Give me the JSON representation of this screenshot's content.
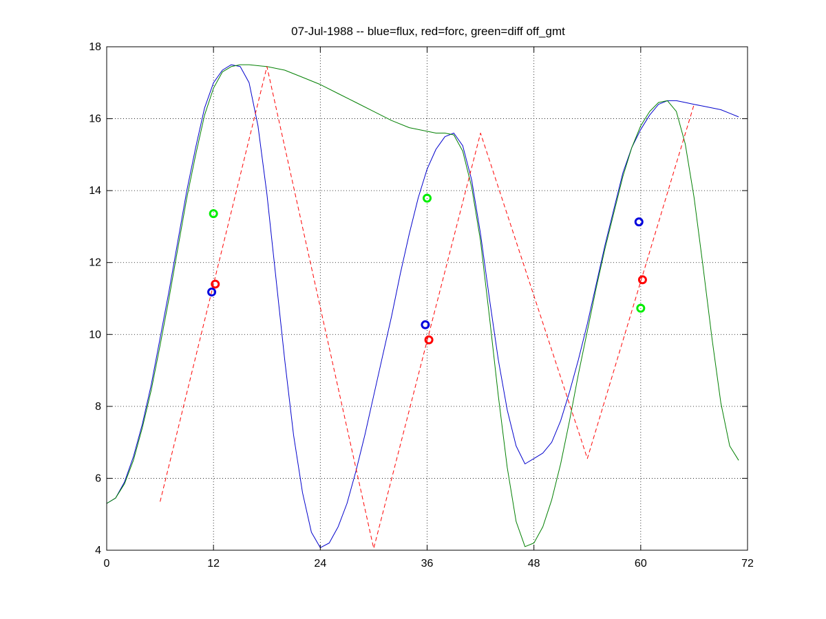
{
  "chart_data": {
    "type": "line",
    "title": "07-Jul-1988 -- blue=flux, red=forc, green=diff off_gmt",
    "xlabel": "",
    "ylabel": "",
    "xlim": [
      0,
      72
    ],
    "ylim": [
      4,
      18
    ],
    "xticks": [
      0,
      12,
      24,
      36,
      48,
      60,
      72
    ],
    "yticks": [
      4,
      6,
      8,
      10,
      12,
      14,
      16,
      18
    ],
    "grid": true,
    "grid_style": "dotted",
    "colors": {
      "flux": "#0000cc",
      "forc": "#ff0000",
      "diff": "#007f00",
      "diff_marker": "#00ee00",
      "forc_marker": "#ff0000",
      "flux_marker": "#0000dd"
    },
    "series": [
      {
        "key": "flux",
        "style": "solid",
        "points": [
          [
            0,
            5.3
          ],
          [
            1,
            5.45
          ],
          [
            2,
            5.9
          ],
          [
            3,
            6.6
          ],
          [
            4,
            7.5
          ],
          [
            5,
            8.6
          ],
          [
            6,
            9.9
          ],
          [
            7,
            11.2
          ],
          [
            8,
            12.6
          ],
          [
            9,
            14.0
          ],
          [
            10,
            15.2
          ],
          [
            11,
            16.3
          ],
          [
            12,
            17.0
          ],
          [
            13,
            17.35
          ],
          [
            14,
            17.5
          ],
          [
            15,
            17.45
          ],
          [
            16,
            17.0
          ],
          [
            17,
            15.8
          ],
          [
            18,
            13.9
          ],
          [
            19,
            11.6
          ],
          [
            20,
            9.3
          ],
          [
            21,
            7.2
          ],
          [
            22,
            5.6
          ],
          [
            23,
            4.5
          ],
          [
            24,
            4.07
          ],
          [
            25,
            4.2
          ],
          [
            26,
            4.65
          ],
          [
            27,
            5.3
          ],
          [
            28,
            6.2
          ],
          [
            29,
            7.2
          ],
          [
            30,
            8.3
          ],
          [
            31,
            9.4
          ],
          [
            32,
            10.5
          ],
          [
            33,
            11.7
          ],
          [
            34,
            12.8
          ],
          [
            35,
            13.8
          ],
          [
            36,
            14.6
          ],
          [
            37,
            15.15
          ],
          [
            38,
            15.5
          ],
          [
            39,
            15.6
          ],
          [
            40,
            15.25
          ],
          [
            41,
            14.3
          ],
          [
            42,
            12.8
          ],
          [
            43,
            11.0
          ],
          [
            44,
            9.3
          ],
          [
            45,
            7.9
          ],
          [
            46,
            6.9
          ],
          [
            47,
            6.4
          ],
          [
            48,
            6.55
          ],
          [
            49,
            6.7
          ],
          [
            50,
            7.0
          ],
          [
            51,
            7.6
          ],
          [
            52,
            8.4
          ],
          [
            53,
            9.3
          ],
          [
            54,
            10.3
          ],
          [
            55,
            11.4
          ],
          [
            56,
            12.5
          ],
          [
            57,
            13.5
          ],
          [
            58,
            14.5
          ],
          [
            59,
            15.2
          ],
          [
            60,
            15.7
          ],
          [
            61,
            16.1
          ],
          [
            62,
            16.4
          ],
          [
            63,
            16.5
          ],
          [
            64,
            16.5
          ],
          [
            65,
            16.45
          ],
          [
            66,
            16.4
          ],
          [
            67,
            16.35
          ],
          [
            68,
            16.3
          ],
          [
            69,
            16.25
          ],
          [
            70,
            16.15
          ],
          [
            71,
            16.05
          ]
        ]
      },
      {
        "key": "diff",
        "style": "solid",
        "points": [
          [
            0,
            5.3
          ],
          [
            1,
            5.45
          ],
          [
            2,
            5.85
          ],
          [
            3,
            6.5
          ],
          [
            4,
            7.4
          ],
          [
            5,
            8.45
          ],
          [
            6,
            9.7
          ],
          [
            7,
            11.0
          ],
          [
            8,
            12.4
          ],
          [
            9,
            13.8
          ],
          [
            10,
            15.0
          ],
          [
            11,
            16.1
          ],
          [
            12,
            16.85
          ],
          [
            13,
            17.3
          ],
          [
            14,
            17.45
          ],
          [
            15,
            17.5
          ],
          [
            16,
            17.5
          ],
          [
            18,
            17.45
          ],
          [
            20,
            17.35
          ],
          [
            22,
            17.15
          ],
          [
            24,
            16.95
          ],
          [
            26,
            16.7
          ],
          [
            28,
            16.45
          ],
          [
            30,
            16.2
          ],
          [
            32,
            15.95
          ],
          [
            34,
            15.75
          ],
          [
            36,
            15.65
          ],
          [
            37,
            15.6
          ],
          [
            38,
            15.6
          ],
          [
            39,
            15.55
          ],
          [
            40,
            15.1
          ],
          [
            41,
            14.1
          ],
          [
            42,
            12.6
          ],
          [
            43,
            10.5
          ],
          [
            44,
            8.3
          ],
          [
            45,
            6.3
          ],
          [
            46,
            4.8
          ],
          [
            47,
            4.1
          ],
          [
            48,
            4.2
          ],
          [
            49,
            4.65
          ],
          [
            50,
            5.4
          ],
          [
            51,
            6.4
          ],
          [
            52,
            7.6
          ],
          [
            53,
            8.9
          ],
          [
            54,
            10.1
          ],
          [
            55,
            11.3
          ],
          [
            56,
            12.4
          ],
          [
            57,
            13.4
          ],
          [
            58,
            14.4
          ],
          [
            59,
            15.2
          ],
          [
            60,
            15.8
          ],
          [
            61,
            16.2
          ],
          [
            62,
            16.45
          ],
          [
            63,
            16.5
          ],
          [
            64,
            16.2
          ],
          [
            65,
            15.3
          ],
          [
            66,
            13.8
          ],
          [
            67,
            11.9
          ],
          [
            68,
            9.9
          ],
          [
            69,
            8.1
          ],
          [
            70,
            6.9
          ],
          [
            71,
            6.5
          ]
        ]
      },
      {
        "key": "forc",
        "style": "dashed",
        "points": [
          [
            6,
            5.35
          ],
          [
            18,
            17.45
          ],
          [
            30,
            4.05
          ],
          [
            42,
            15.6
          ],
          [
            54,
            6.55
          ],
          [
            66,
            16.4
          ]
        ]
      }
    ],
    "markers": [
      {
        "key": "flux",
        "x": 11.8,
        "y": 11.18
      },
      {
        "key": "forc",
        "x": 12.2,
        "y": 11.4
      },
      {
        "key": "diff",
        "x": 12.0,
        "y": 13.36
      },
      {
        "key": "flux",
        "x": 35.8,
        "y": 10.27
      },
      {
        "key": "forc",
        "x": 36.2,
        "y": 9.85
      },
      {
        "key": "diff",
        "x": 36.0,
        "y": 13.79
      },
      {
        "key": "flux",
        "x": 59.8,
        "y": 13.13
      },
      {
        "key": "forc",
        "x": 60.2,
        "y": 11.52
      },
      {
        "key": "diff",
        "x": 60.0,
        "y": 10.73
      }
    ]
  }
}
